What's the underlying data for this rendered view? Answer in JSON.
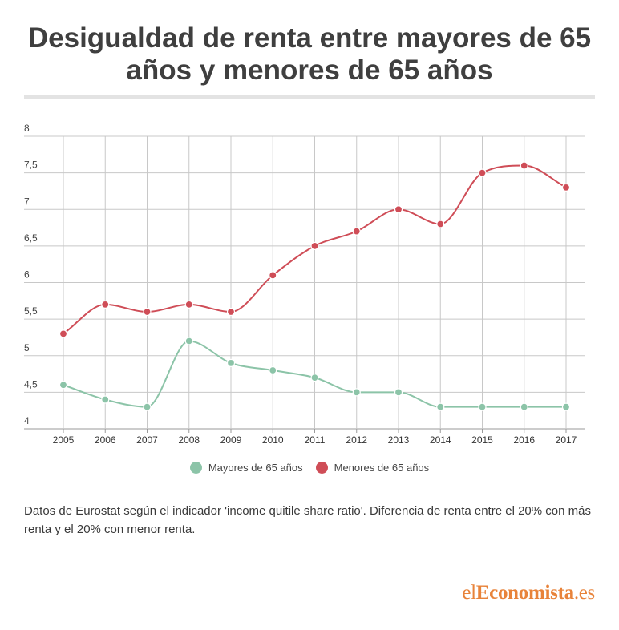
{
  "title": "Desigualdad de renta entre mayores de 65 años y menores de 65 años",
  "colors": {
    "mayores": "#8cc4a8",
    "menores": "#cf4d57",
    "grid": "#c8c8c8",
    "logo": "#e8833a"
  },
  "note": "Datos de Eurostat según el indicador  'income quitile share ratio'. Diferencia de renta entre el 20% con más renta y el 20% con menor renta.",
  "logo": {
    "part1": "el",
    "part2": "Economista",
    "part3": ".es"
  },
  "chart_data": {
    "type": "line",
    "title": "",
    "xlabel": "",
    "ylabel": "",
    "x": [
      "2005",
      "2006",
      "2007",
      "2008",
      "2009",
      "2010",
      "2011",
      "2012",
      "2013",
      "2014",
      "2015",
      "2016",
      "2017"
    ],
    "ylim": [
      4,
      8
    ],
    "yticks": [
      "4",
      "4,5",
      "5",
      "5,5",
      "6",
      "6,5",
      "7",
      "7,5",
      "8"
    ],
    "grid": true,
    "legend_position": "bottom",
    "series": [
      {
        "name": "Mayores de 65 años",
        "color": "#8cc4a8",
        "values": [
          4.6,
          4.4,
          4.3,
          5.2,
          4.9,
          4.8,
          4.7,
          4.5,
          4.5,
          4.3,
          4.3,
          4.3,
          4.3
        ]
      },
      {
        "name": "Menores de 65 años",
        "color": "#cf4d57",
        "values": [
          5.3,
          5.7,
          5.6,
          5.7,
          5.6,
          6.1,
          6.5,
          6.7,
          7.0,
          6.8,
          7.5,
          7.6,
          7.3
        ]
      }
    ]
  }
}
